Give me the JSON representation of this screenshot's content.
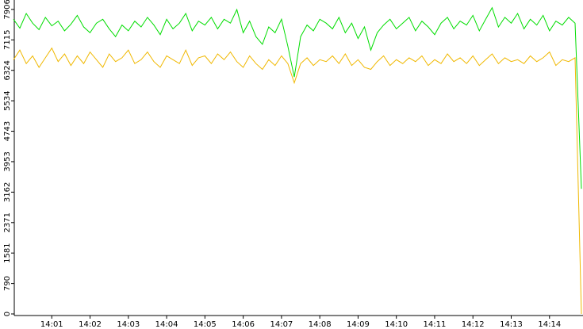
{
  "chart_data": {
    "type": "line",
    "categories": [
      null,
      null,
      null,
      null,
      null,
      null,
      "14:01",
      null,
      null,
      null,
      null,
      null,
      "14:02",
      null,
      null,
      null,
      null,
      null,
      "14:03",
      null,
      null,
      null,
      null,
      null,
      "14:04",
      null,
      null,
      null,
      null,
      null,
      "14:05",
      null,
      null,
      null,
      null,
      null,
      "14:06",
      null,
      null,
      null,
      null,
      null,
      "14:07",
      null,
      null,
      null,
      null,
      null,
      "14:08",
      null,
      null,
      null,
      null,
      null,
      "14:09",
      null,
      null,
      null,
      null,
      null,
      "14:10",
      null,
      null,
      null,
      null,
      null,
      "14:11",
      null,
      null,
      null,
      null,
      null,
      "14:12",
      null,
      null,
      null,
      null,
      null,
      "14:13",
      null,
      null,
      null,
      null,
      null,
      "14:14",
      null,
      null,
      null,
      null,
      null
    ],
    "series": [
      {
        "color": "#00dd00",
        "values": [
          7650,
          7420,
          7800,
          7550,
          7380,
          7700,
          7480,
          7600,
          7350,
          7520,
          7750,
          7450,
          7300,
          7550,
          7650,
          7400,
          7200,
          7500,
          7350,
          7600,
          7450,
          7700,
          7500,
          7250,
          7650,
          7400,
          7550,
          7800,
          7350,
          7600,
          7500,
          7700,
          7400,
          7650,
          7550,
          7900,
          7300,
          7600,
          7200,
          7000,
          7450,
          7300,
          7650,
          6950,
          6150,
          7200,
          7500,
          7350,
          7650,
          7550,
          7400,
          7700,
          7300,
          7550,
          7150,
          7450,
          6850,
          7300,
          7500,
          7650,
          7400,
          7550,
          7700,
          7350,
          7600,
          7450,
          7250,
          7550,
          7700,
          7400,
          7600,
          7500,
          7750,
          7350,
          7650,
          7950,
          7450,
          7700,
          7550,
          7800,
          7400,
          7650,
          7500,
          7750,
          7350,
          7600,
          7500,
          7700,
          7550,
          3250
        ]
      },
      {
        "color": "#f0b800",
        "values": [
          6600,
          6850,
          6500,
          6700,
          6400,
          6650,
          6900,
          6550,
          6750,
          6450,
          6700,
          6500,
          6800,
          6600,
          6400,
          6750,
          6550,
          6650,
          6850,
          6500,
          6600,
          6800,
          6550,
          6400,
          6700,
          6600,
          6500,
          6850,
          6450,
          6650,
          6700,
          6500,
          6750,
          6600,
          6800,
          6550,
          6400,
          6700,
          6500,
          6350,
          6600,
          6450,
          6700,
          6500,
          6000,
          6500,
          6650,
          6450,
          6600,
          6550,
          6700,
          6500,
          6750,
          6450,
          6600,
          6400,
          6350,
          6550,
          6700,
          6450,
          6600,
          6500,
          6650,
          6550,
          6700,
          6450,
          6600,
          6500,
          6750,
          6550,
          6650,
          6500,
          6700,
          6450,
          6600,
          6750,
          6500,
          6650,
          6550,
          6600,
          6500,
          6700,
          6550,
          6650,
          6800,
          6450,
          6600,
          6550,
          6650,
          0
        ]
      }
    ],
    "ylim": [
      0,
      8150
    ],
    "yticks": [
      0,
      790,
      1581,
      2371,
      3162,
      3953,
      4743,
      5534,
      6324,
      7115,
      7906
    ]
  }
}
